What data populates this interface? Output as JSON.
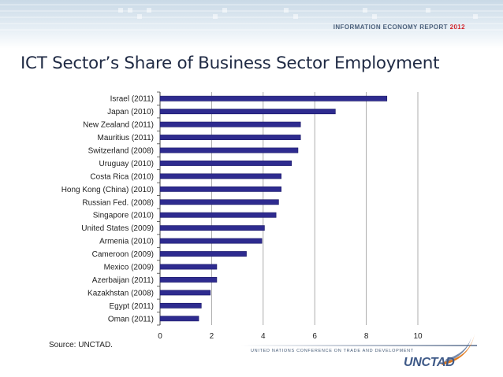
{
  "header": {
    "report_title": "INFORMATION ECONOMY REPORT",
    "report_year": "2012"
  },
  "slide": {
    "title": "ICT Sector’s Share of Business Sector Employment",
    "source": "Source:  UNCTAD."
  },
  "footer": {
    "tagline": "UNITED NATIONS CONFERENCE ON TRADE AND DEVELOPMENT",
    "logo_text": "UNCTAD"
  },
  "colors": {
    "bar": "#2e2b8f",
    "grid": "#9a9a9a",
    "title": "#1f2a44",
    "accent_red": "#d2232a",
    "logo_blue": "#3f5a88",
    "logo_orange": "#e07a1f"
  },
  "chart_data": {
    "type": "bar",
    "orientation": "horizontal",
    "categories": [
      "Israel (2011)",
      "Japan (2010)",
      "New Zealand (2011)",
      "Mauritius (2011)",
      "Switzerland (2008)",
      "Uruguay (2010)",
      "Costa Rica (2010)",
      "Hong Kong (China) (2010)",
      "Russian Fed. (2008)",
      "Singapore (2010)",
      "United States (2009)",
      "Armenia (2010)",
      "Cameroon (2009)",
      "Mexico (2009)",
      "Azerbaijan (2011)",
      "Kazakhstan (2008)",
      "Egypt (2011)",
      "Oman (2011)"
    ],
    "values": [
      8.8,
      6.8,
      5.45,
      5.45,
      5.35,
      5.1,
      4.7,
      4.7,
      4.6,
      4.5,
      4.05,
      3.95,
      3.35,
      2.2,
      2.2,
      1.95,
      1.6,
      1.5
    ],
    "xlim": [
      0,
      10
    ],
    "xticks": [
      "0",
      "2",
      "4",
      "6",
      "8",
      "10"
    ],
    "grid": true
  }
}
